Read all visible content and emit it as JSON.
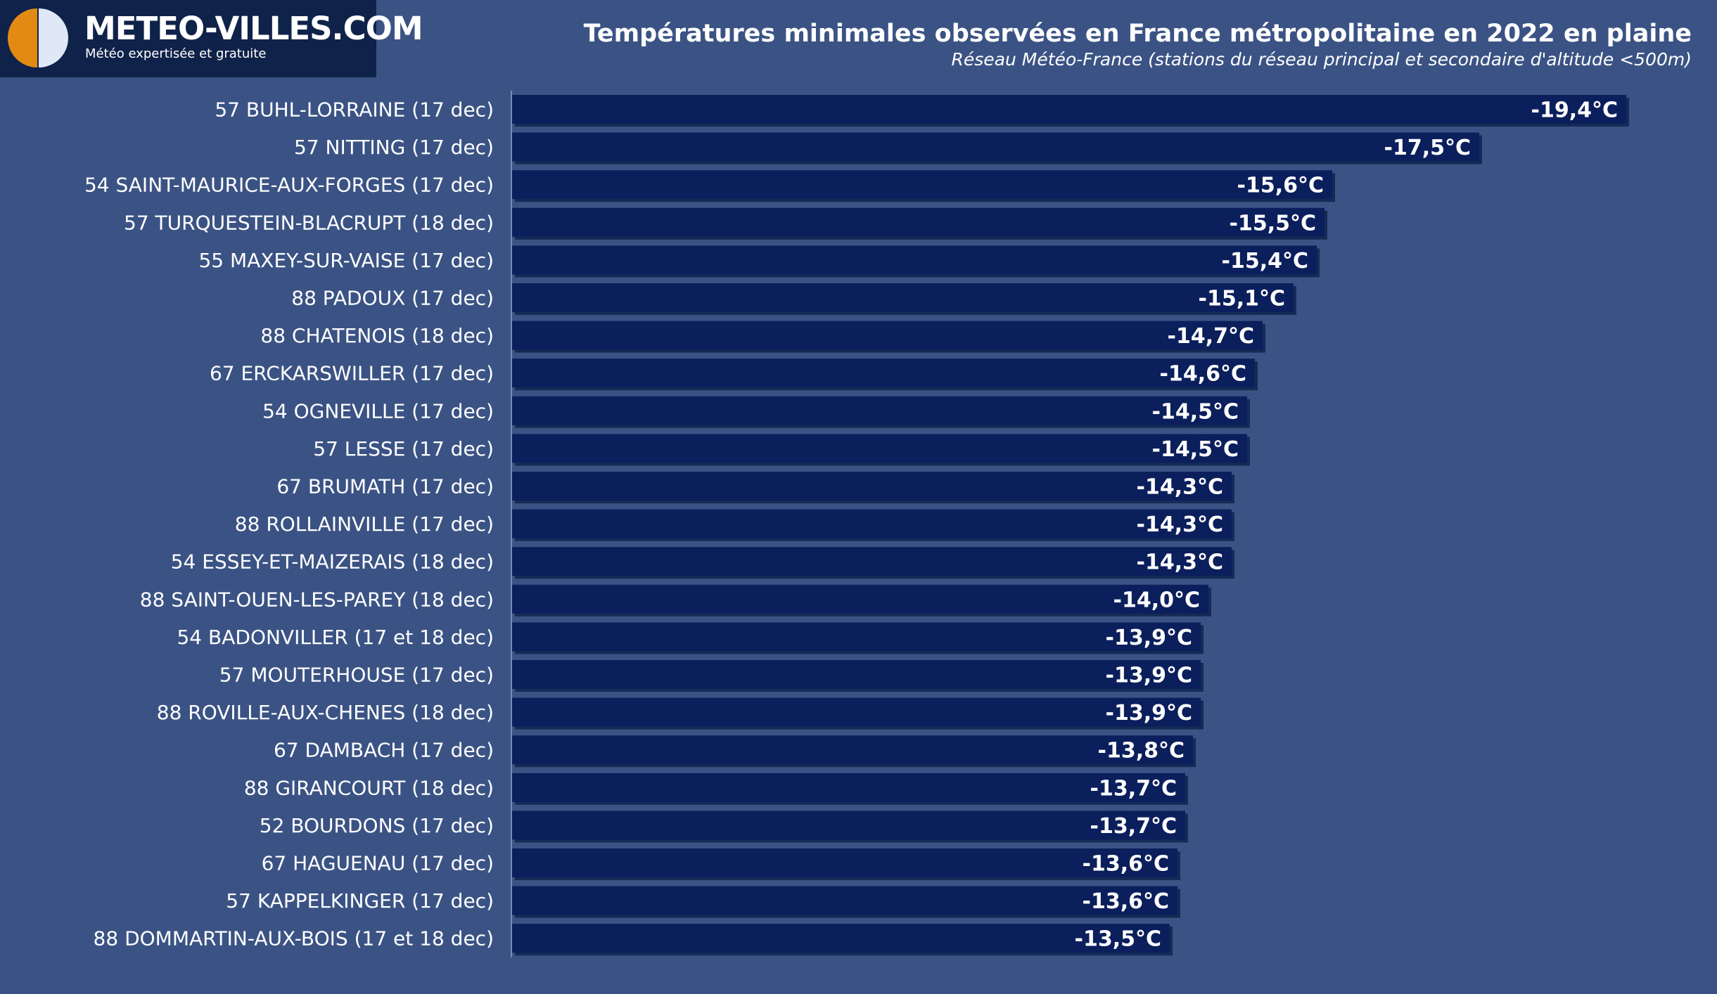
{
  "logo": {
    "name": "METEO-VILLES.COM",
    "tagline": "Météo expertisée et gratuite"
  },
  "colors": {
    "background": "#3b5384",
    "bar": "#0b1f5c",
    "bar_shadow": "#152a55",
    "logo_box": "#0f2249",
    "logo_orange": "#e38a13",
    "logo_light": "#dfe8f5",
    "text": "#ffffff"
  },
  "chart_data": {
    "type": "bar",
    "orientation": "horizontal",
    "title": "Températures minimales observées en France métropolitaine en 2022 en plaine",
    "subtitle": "Réseau Météo-France (stations du réseau principal et secondaire d'altitude <500m)",
    "xlabel": "",
    "ylabel": "",
    "unit": "°C",
    "categories": [
      "57 BUHL-LORRAINE (17 dec)",
      "57 NITTING (17 dec)",
      "54 SAINT-MAURICE-AUX-FORGES (17 dec)",
      "57 TURQUESTEIN-BLACRUPT (18 dec)",
      "55 MAXEY-SUR-VAISE (17 dec)",
      "88 PADOUX (17 dec)",
      "88 CHATENOIS (18 dec)",
      "67 ERCKARSWILLER (17 dec)",
      "54 OGNEVILLE (17 dec)",
      "57 LESSE (17 dec)",
      "67 BRUMATH (17 dec)",
      "88 ROLLAINVILLE (17 dec)",
      "54 ESSEY-ET-MAIZERAIS (18 dec)",
      "88 SAINT-OUEN-LES-PAREY (18 dec)",
      "54 BADONVILLER (17 et 18 dec)",
      "57 MOUTERHOUSE (17 dec)",
      "88 ROVILLE-AUX-CHENES (18 dec)",
      "67 DAMBACH (17 dec)",
      "88 GIRANCOURT (18 dec)",
      "52 BOURDONS (17 dec)",
      "67 HAGUENAU (17 dec)",
      "57 KAPPELKINGER (17 dec)",
      "88 DOMMARTIN-AUX-BOIS (17 et 18 dec)"
    ],
    "values": [
      -19.4,
      -17.5,
      -15.6,
      -15.5,
      -15.4,
      -15.1,
      -14.7,
      -14.6,
      -14.5,
      -14.5,
      -14.3,
      -14.3,
      -14.3,
      -14.0,
      -13.9,
      -13.9,
      -13.9,
      -13.8,
      -13.7,
      -13.7,
      -13.6,
      -13.6,
      -13.5
    ],
    "value_labels": [
      "-19,4°C",
      "-17,5°C",
      "-15,6°C",
      "-15,5°C",
      "-15,4°C",
      "-15,1°C",
      "-14,7°C",
      "-14,6°C",
      "-14,5°C",
      "-14,5°C",
      "-14,3°C",
      "-14,3°C",
      "-14,3°C",
      "-14,0°C",
      "-13,9°C",
      "-13,9°C",
      "-13,9°C",
      "-13,8°C",
      "-13,7°C",
      "-13,7°C",
      "-13,6°C",
      "-13,6°C",
      "-13,5°C"
    ],
    "xlim": [
      -5,
      -19.6
    ],
    "grid": false,
    "legend": "none"
  }
}
